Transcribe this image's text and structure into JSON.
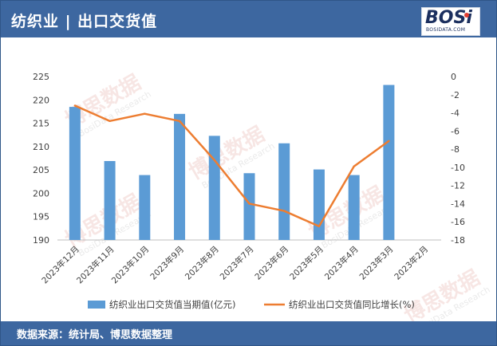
{
  "header": {
    "title": "纺织业 | 出口交货值"
  },
  "logo": {
    "text": "BOSi",
    "sub": "BOSIDATA.COM"
  },
  "footer": {
    "source": "数据来源：统计局、博思数据整理"
  },
  "watermark": {
    "text": "博思数据",
    "sub": "BosiData Research"
  },
  "colors": {
    "bar": "#5b9bd5",
    "line": "#ed7d31",
    "header": "#3d67a0"
  },
  "chart_data": {
    "type": "bar",
    "categories": [
      "2023年12月",
      "2023年11月",
      "2023年10月",
      "2023年9月",
      "2023年8月",
      "2023年7月",
      "2023年6月",
      "2023年5月",
      "2023年4月",
      "2023年3月",
      "2023年2月"
    ],
    "series": [
      {
        "name": "纺织业出口交货值当期值(亿元)",
        "type": "bar",
        "axis": "left",
        "values": [
          218.5,
          206.9,
          203.9,
          217.0,
          212.3,
          204.3,
          210.7,
          205.1,
          203.9,
          223.2,
          null
        ]
      },
      {
        "name": "纺织业出口交货值同比增长(%)",
        "type": "line",
        "axis": "right",
        "values": [
          -3.2,
          -4.9,
          -4.1,
          -4.9,
          -9.2,
          -14.0,
          -14.8,
          -16.5,
          -9.9,
          -7.1,
          null
        ]
      }
    ],
    "y_left": {
      "min": 190,
      "max": 225,
      "ticks": [
        190,
        195,
        200,
        205,
        210,
        215,
        220,
        225
      ]
    },
    "y_right": {
      "min": -18,
      "max": 0,
      "ticks": [
        0,
        -2,
        -4,
        -6,
        -8,
        -10,
        -12,
        -14,
        -16,
        -18
      ]
    },
    "legend_position": "bottom",
    "grid": false
  }
}
